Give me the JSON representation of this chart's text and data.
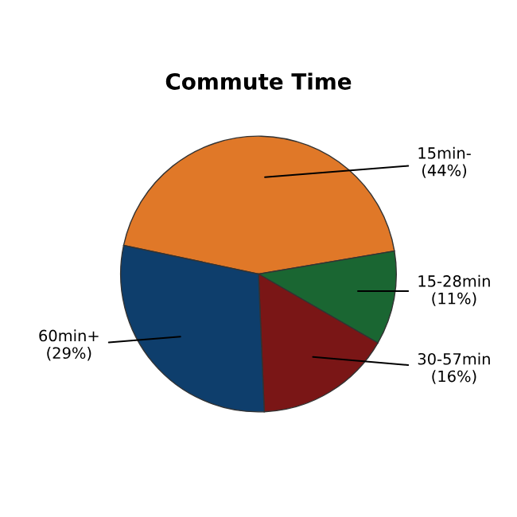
{
  "chart_data": {
    "type": "pie",
    "title": "Commute Time",
    "categories": [
      "15min-",
      "15-28min",
      "30-57min",
      "60min+"
    ],
    "values": [
      44,
      11,
      16,
      29
    ],
    "value_labels": [
      "(44%)",
      "(11%)",
      "(16%)",
      "(29%)"
    ],
    "colors": [
      "#e07828",
      "#1a6632",
      "#7a1616",
      "#0e3e6c"
    ]
  }
}
